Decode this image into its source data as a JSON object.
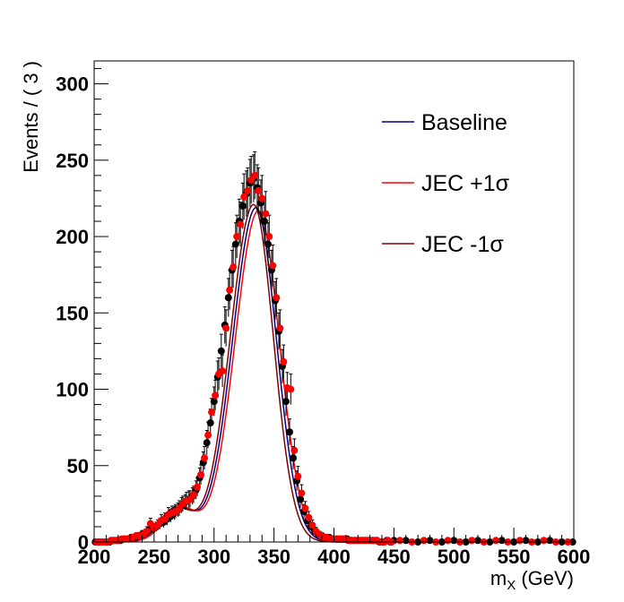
{
  "chart_data": {
    "type": "scatter",
    "xlabel": "m",
    "xlabel_sub": "X",
    "xlabel_unit": " (GeV)",
    "ylabel": "Events / ( 3 )",
    "xlim": [
      200,
      600
    ],
    "ylim": [
      0,
      315
    ],
    "x_ticks": [
      200,
      250,
      300,
      350,
      400,
      450,
      500,
      550,
      600
    ],
    "y_ticks": [
      0,
      50,
      100,
      150,
      200,
      250,
      300
    ],
    "grid": false,
    "legend_position": "top-right",
    "legend": [
      {
        "label": "Baseline",
        "color": "#000080"
      },
      {
        "label": "JEC +1σ",
        "color": "#ff0000"
      },
      {
        "label": "JEC -1σ",
        "color": "#800000"
      }
    ],
    "curves": [
      {
        "name": "Baseline",
        "color": "#000080",
        "peak": 335,
        "sigma_left": 19.5,
        "sigma_right": 17.0,
        "amp": 219,
        "tail_center": 270,
        "tail_sigma": 14,
        "tail_amp": 22
      },
      {
        "name": "JEC +1σ",
        "color": "#ff0000",
        "peak": 337,
        "sigma_left": 19.5,
        "sigma_right": 17.5,
        "amp": 217,
        "tail_center": 272,
        "tail_sigma": 14,
        "tail_amp": 22
      },
      {
        "name": "JEC -1σ",
        "color": "#800000",
        "peak": 333,
        "sigma_left": 19.5,
        "sigma_right": 16.5,
        "amp": 221,
        "tail_center": 268,
        "tail_sigma": 14,
        "tail_amp": 22
      }
    ],
    "series": [
      {
        "name": "",
        "color": "#000000",
        "x": [
          201,
          204,
          207,
          210,
          213,
          216,
          219,
          222,
          225,
          228,
          231,
          234,
          237,
          240,
          243,
          246,
          249,
          252,
          255,
          258,
          261,
          264,
          267,
          270,
          273,
          276,
          279,
          282,
          285,
          288,
          291,
          294,
          297,
          300,
          303,
          306,
          309,
          312,
          315,
          318,
          321,
          324,
          327,
          330,
          333,
          336,
          339,
          342,
          345,
          348,
          351,
          354,
          357,
          360,
          363,
          366,
          369,
          372,
          375,
          378,
          381,
          384,
          387,
          390,
          393,
          396,
          399,
          402,
          405,
          408,
          411,
          414,
          417,
          420,
          423,
          426,
          429,
          432,
          435,
          438,
          441,
          444,
          447,
          450,
          460,
          470,
          480,
          490,
          500,
          510,
          520,
          530,
          540,
          550,
          560,
          570,
          580,
          590,
          599
        ],
        "y": [
          0,
          0,
          0,
          0,
          0,
          1,
          1,
          1,
          2,
          2,
          3,
          3,
          4,
          5,
          6,
          8,
          9,
          10,
          12,
          13,
          15,
          17,
          19,
          21,
          24,
          26,
          28,
          30,
          34,
          42,
          52,
          65,
          78,
          92,
          108,
          125,
          142,
          160,
          178,
          195,
          210,
          220,
          228,
          235,
          238,
          232,
          222,
          210,
          195,
          178,
          158,
          138,
          115,
          92,
          72,
          55,
          40,
          28,
          20,
          14,
          10,
          7,
          5,
          4,
          3,
          3,
          2,
          2,
          2,
          2,
          2,
          1,
          1,
          1,
          1,
          1,
          1,
          1,
          1,
          0,
          0,
          1,
          0,
          1,
          1,
          0,
          1,
          0,
          1,
          0,
          1,
          0,
          1,
          0,
          1,
          0,
          1,
          0,
          0
        ],
        "err": [
          0,
          0,
          0,
          0,
          0,
          1,
          1,
          1,
          1.5,
          1.5,
          2,
          2,
          2,
          2.5,
          2.5,
          3,
          3,
          3,
          3.5,
          3.5,
          4,
          4,
          4.5,
          4.5,
          5,
          5,
          5.5,
          5.5,
          6,
          6.5,
          7,
          8,
          9,
          9.5,
          10.5,
          11,
          12,
          12.5,
          13,
          14,
          14.5,
          15,
          15,
          15.5,
          15.5,
          15,
          15,
          14.5,
          14,
          13,
          12.5,
          12,
          11,
          9.5,
          8.5,
          7.5,
          6.5,
          5.5,
          4.5,
          4,
          3,
          2.5,
          2,
          2,
          1.5,
          1.5,
          1.5,
          1.5,
          1.5,
          1.5,
          1.5,
          1,
          1,
          1,
          1,
          1,
          1,
          1,
          1,
          0,
          0,
          1,
          0,
          1,
          1,
          0,
          1,
          0,
          1,
          0,
          1,
          0,
          1,
          0,
          1,
          0,
          1,
          0,
          0
        ]
      },
      {
        "name": "",
        "color": "#ff0000",
        "x": [
          202,
          205,
          208,
          211,
          214,
          217,
          220,
          223,
          226,
          229,
          232,
          235,
          238,
          241,
          244,
          247,
          250,
          253,
          256,
          259,
          262,
          265,
          268,
          271,
          274,
          277,
          280,
          283,
          286,
          289,
          292,
          295,
          298,
          301,
          304,
          307,
          310,
          313,
          316,
          319,
          322,
          325,
          328,
          331,
          334,
          337,
          340,
          343,
          346,
          349,
          352,
          355,
          358,
          361,
          364,
          367,
          370,
          373,
          376,
          379,
          382,
          385,
          388,
          391,
          394,
          397,
          400,
          403,
          406,
          409,
          412,
          415,
          418,
          421,
          424,
          427,
          430,
          433,
          436,
          439,
          442,
          445,
          448,
          455,
          465,
          475,
          485,
          495,
          505,
          515,
          525,
          535,
          545,
          555,
          565,
          575,
          585,
          595
        ],
        "y": [
          0,
          0,
          0,
          0,
          1,
          1,
          1,
          2,
          2,
          2,
          3,
          4,
          4,
          5,
          7,
          12,
          9,
          11,
          14,
          15,
          18,
          19,
          20,
          22,
          25,
          27,
          28,
          31,
          36,
          44,
          55,
          70,
          85,
          96,
          110,
          112,
          140,
          165,
          180,
          200,
          208,
          226,
          230,
          237,
          240,
          230,
          225,
          215,
          200,
          181,
          160,
          140,
          118,
          101,
          100,
          60,
          43,
          32,
          22,
          16,
          11,
          7,
          5,
          3,
          3,
          2,
          2,
          2,
          2,
          2,
          1,
          1,
          1,
          1,
          1,
          1,
          1,
          1,
          1,
          0,
          0,
          1,
          0,
          1,
          0,
          1,
          0,
          1,
          0,
          1,
          0,
          1,
          0,
          1,
          0,
          1,
          0,
          0
        ],
        "err": [
          0,
          0,
          0,
          0,
          1,
          1,
          1,
          1.5,
          1.5,
          1.5,
          2,
          2,
          2,
          2.5,
          3,
          3.5,
          3,
          3.5,
          4,
          4,
          4.5,
          4.5,
          4.5,
          5,
          5,
          5.5,
          5.5,
          5.5,
          6,
          6.5,
          7.5,
          8.5,
          9,
          10,
          10.5,
          10.5,
          12,
          13,
          13.5,
          14,
          14.5,
          15,
          15,
          15.5,
          15.5,
          15,
          15,
          14.5,
          14,
          13.5,
          12.5,
          12,
          11,
          10,
          10,
          7.5,
          6.5,
          5.5,
          4.5,
          4,
          3.5,
          2.5,
          2,
          1.5,
          1.5,
          1.5,
          1.5,
          1.5,
          1.5,
          1.5,
          1,
          1,
          1,
          1,
          1,
          1,
          1,
          1,
          1,
          0,
          0,
          1,
          0,
          1,
          0,
          1,
          0,
          1,
          0,
          1,
          0,
          1,
          0,
          1,
          0,
          1,
          0,
          0
        ]
      }
    ]
  }
}
